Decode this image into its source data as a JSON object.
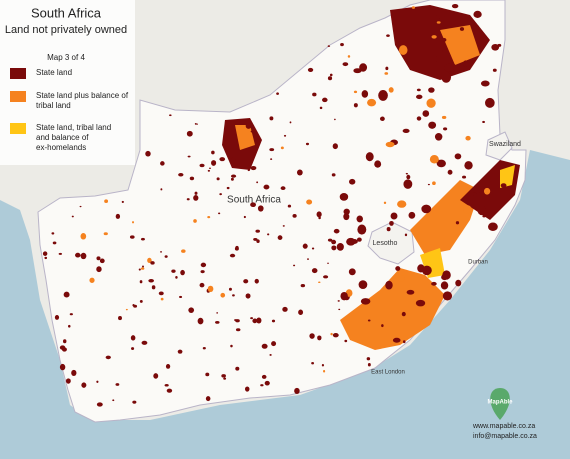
{
  "header": {
    "title": "South Africa",
    "subtitle": "Land not privately owned",
    "map_number": "Map 3 of 4"
  },
  "legend": {
    "items": [
      {
        "label": "State land",
        "color": "#7a0a0a"
      },
      {
        "label": "State land plus balance of tribal land",
        "color": "#f5821f"
      },
      {
        "label": "State land, tribal land and balance of ex-homelands",
        "color": "#ffc515"
      }
    ]
  },
  "map_labels": [
    {
      "text": "South Africa"
    },
    {
      "text": "Lesotho"
    },
    {
      "text": "Swaziland"
    },
    {
      "text": "Durban"
    },
    {
      "text": "East London"
    }
  ],
  "footer": {
    "logo": "MapAble",
    "website": "www.mapable.co.za",
    "email": "info@mapable.co.za"
  }
}
